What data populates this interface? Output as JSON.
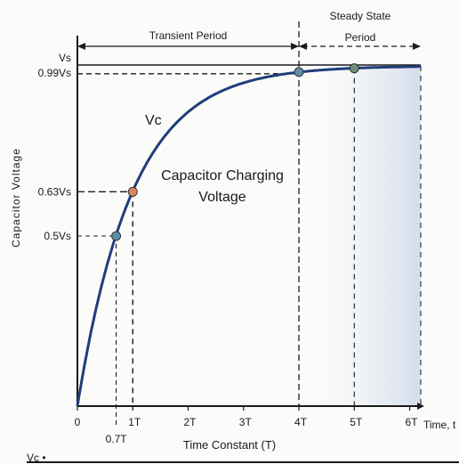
{
  "chart_data": {
    "type": "line",
    "title": "",
    "xlabel": "Time Constant (T)",
    "x_axis_end_label": "Time, t",
    "ylabel": "Capacitor Voltage",
    "curve_label": "Vc",
    "curve_description": "Capacitor Charging Voltage",
    "footer_text": "Vc •",
    "x_range": [
      0,
      6.2
    ],
    "y_range": [
      0,
      1
    ],
    "x_ticks": [
      {
        "value": 0,
        "label": "0"
      },
      {
        "value": 1,
        "label": "1T"
      },
      {
        "value": 2,
        "label": "2T"
      },
      {
        "value": 3,
        "label": "3T"
      },
      {
        "value": 4,
        "label": "4T"
      },
      {
        "value": 5,
        "label": "5T"
      },
      {
        "value": 6,
        "label": "6T"
      }
    ],
    "extra_x_label": {
      "value": 0.7,
      "label": "0.7T"
    },
    "y_markers": [
      {
        "value": 1.0,
        "label": "Vs"
      },
      {
        "value": 0.99,
        "label": "0.99Vs"
      },
      {
        "value": 0.63,
        "label": "0.63Vs"
      },
      {
        "value": 0.5,
        "label": "0.5Vs"
      }
    ],
    "highlighted_points": [
      {
        "x": 0.7,
        "y": 0.5,
        "color": "#5b8fa8"
      },
      {
        "x": 1,
        "y": 0.63,
        "color": "#d9875a"
      },
      {
        "x": 4,
        "y": 0.982,
        "color": "#5b8fa8"
      },
      {
        "x": 5,
        "y": 0.993,
        "color": "#6e8f7a"
      }
    ],
    "periods": [
      {
        "name": "Transient Period",
        "from": 0,
        "to": 4
      },
      {
        "name": "Steady State Period",
        "from": 4,
        "to": 6.2
      }
    ],
    "curve_function": "1 - exp(-t)",
    "colors": {
      "curve": "#1f3d7a",
      "shade": "#dfe6f1",
      "axis": "#1a1a1a"
    }
  }
}
